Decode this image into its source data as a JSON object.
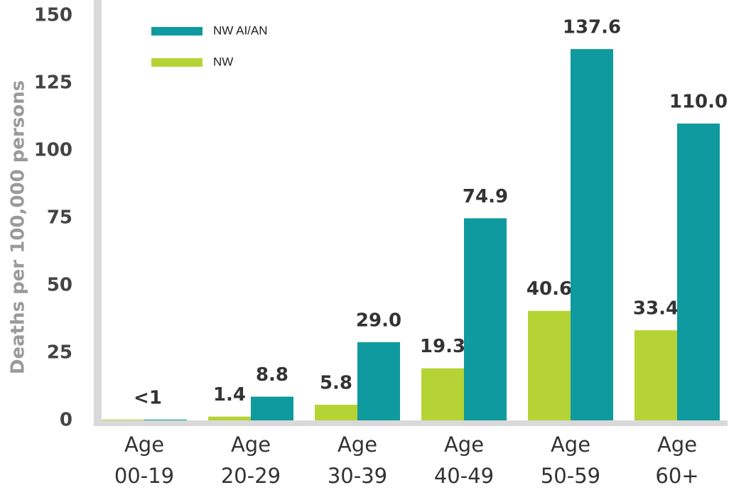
{
  "chart_data": {
    "type": "bar",
    "y_label": "Deaths per 100,000 persons",
    "categories": [
      "Age 00-19",
      "Age 20-29",
      "Age 30-39",
      "Age 40-49",
      "Age 50-59",
      "Age 60+"
    ],
    "series": [
      {
        "name": "NW",
        "color": "#b5d334",
        "values": [
          0.3,
          1.4,
          5.8,
          19.3,
          40.6,
          33.4
        ],
        "value_labels": [
          "<1",
          "1.4",
          "5.8",
          "19.3",
          "40.6",
          "33.4"
        ]
      },
      {
        "name": "NW AI/AN",
        "color": "#0e9a9e",
        "values": [
          0.3,
          8.8,
          29.0,
          74.9,
          137.6,
          110.0
        ],
        "value_labels": [
          null,
          "8.8",
          "29.0",
          "74.9",
          "137.6",
          "110.0"
        ]
      }
    ],
    "ylim": [
      0,
      150
    ],
    "yticks": [
      0,
      25,
      50,
      75,
      100,
      125,
      150
    ],
    "grid": false,
    "legend": "top-left"
  }
}
